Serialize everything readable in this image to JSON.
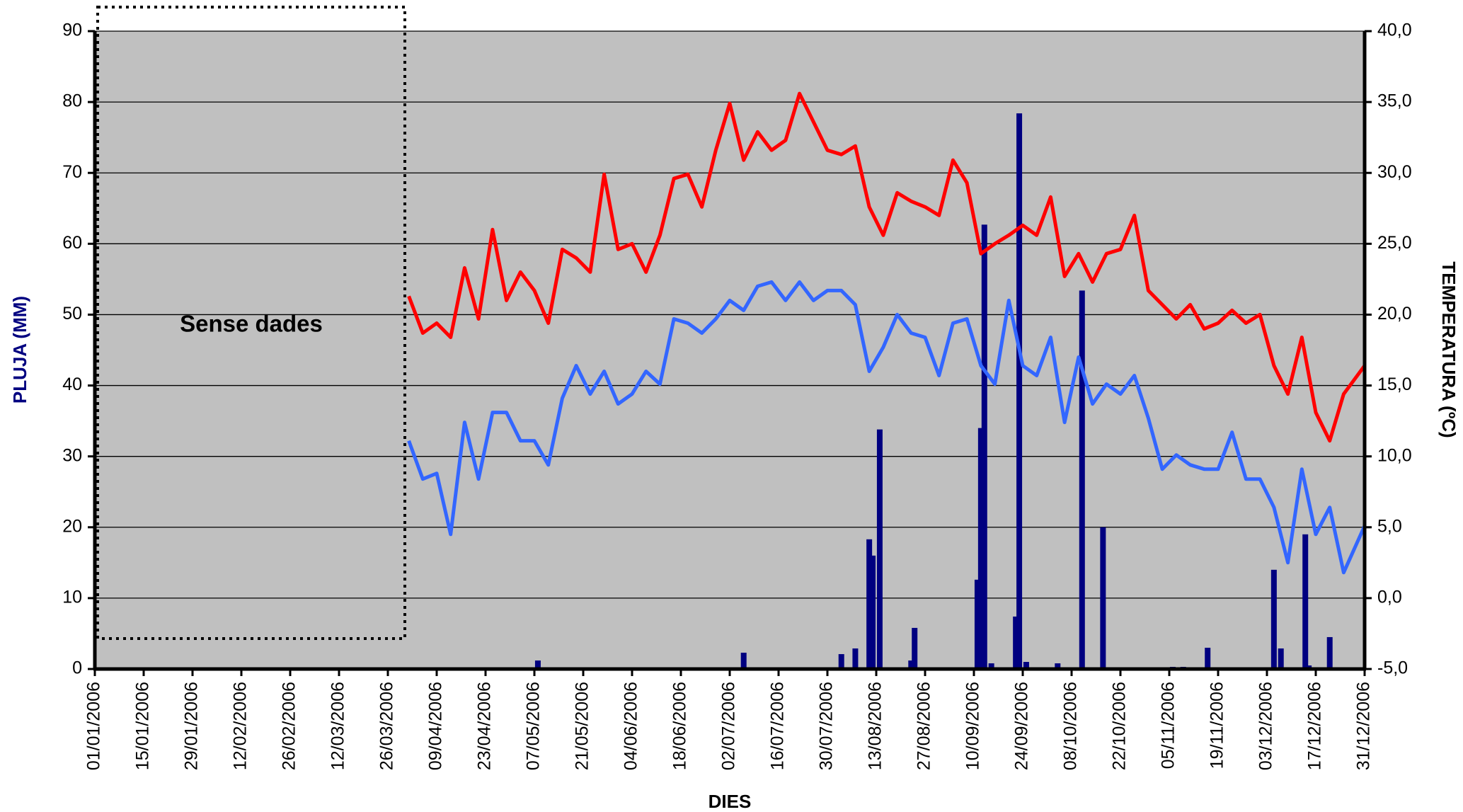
{
  "chart_data": {
    "type": "combo",
    "x_label": "DIES",
    "y_label": "PLUJA (MM)",
    "y2_label": "TEMPERATURA (ºC)",
    "annotations": [
      {
        "text": "Sense dades"
      }
    ],
    "xlim": [
      "01/01/2006",
      "31/12/2006"
    ],
    "xticks": [
      "01/01/2006",
      "15/01/2006",
      "29/01/2006",
      "12/02/2006",
      "26/02/2006",
      "12/03/2006",
      "26/03/2006",
      "09/04/2006",
      "23/04/2006",
      "07/05/2006",
      "21/05/2006",
      "04/06/2006",
      "18/06/2006",
      "02/07/2006",
      "16/07/2006",
      "30/07/2006",
      "13/08/2006",
      "27/08/2006",
      "10/09/2006",
      "24/09/2006",
      "08/10/2006",
      "22/10/2006",
      "05/11/2006",
      "19/11/2006",
      "03/12/2006",
      "17/12/2006",
      "31/12/2006"
    ],
    "ylim": [
      0,
      90
    ],
    "yticks": [
      0,
      10,
      20,
      30,
      40,
      50,
      60,
      70,
      80,
      90
    ],
    "y2lim": [
      -5,
      40
    ],
    "y2ticks": [
      {
        "value": -5,
        "label": "-5,0"
      },
      {
        "value": 0,
        "label": "0,0"
      },
      {
        "value": 5,
        "label": "5,0"
      },
      {
        "value": 10,
        "label": "10,0"
      },
      {
        "value": 15,
        "label": "15,0"
      },
      {
        "value": 20,
        "label": "20,0"
      },
      {
        "value": 25,
        "label": "25,0"
      },
      {
        "value": 30,
        "label": "30,0"
      },
      {
        "value": 35,
        "label": "35,0"
      },
      {
        "value": 40,
        "label": "40,0"
      }
    ],
    "grid": true,
    "x": [
      "01/04/2006",
      "05/04/2006",
      "09/04/2006",
      "13/04/2006",
      "17/04/2006",
      "21/04/2006",
      "25/04/2006",
      "29/04/2006",
      "03/05/2006",
      "07/05/2006",
      "11/05/2006",
      "15/05/2006",
      "19/05/2006",
      "23/05/2006",
      "27/05/2006",
      "31/05/2006",
      "04/06/2006",
      "08/06/2006",
      "12/06/2006",
      "16/06/2006",
      "20/06/2006",
      "24/06/2006",
      "28/06/2006",
      "02/07/2006",
      "06/07/2006",
      "10/07/2006",
      "14/07/2006",
      "18/07/2006",
      "22/07/2006",
      "26/07/2006",
      "30/07/2006",
      "03/08/2006",
      "07/08/2006",
      "11/08/2006",
      "15/08/2006",
      "19/08/2006",
      "23/08/2006",
      "27/08/2006",
      "31/08/2006",
      "04/09/2006",
      "08/09/2006",
      "12/09/2006",
      "16/09/2006",
      "20/09/2006",
      "24/09/2006",
      "28/09/2006",
      "02/10/2006",
      "06/10/2006",
      "10/10/2006",
      "14/10/2006",
      "18/10/2006",
      "22/10/2006",
      "26/10/2006",
      "30/10/2006",
      "03/11/2006",
      "07/11/2006",
      "11/11/2006",
      "15/11/2006",
      "19/11/2006",
      "23/11/2006",
      "27/11/2006",
      "01/12/2006",
      "05/12/2006",
      "09/12/2006",
      "13/12/2006",
      "17/12/2006",
      "21/12/2006",
      "25/12/2006",
      "31/12/2006"
    ],
    "series": [
      {
        "kind": "line",
        "axis": "y2",
        "color": "#ff0000",
        "values": [
          21.3,
          18.7,
          19.4,
          18.4,
          23.3,
          19.7,
          26.0,
          21.0,
          23.0,
          21.7,
          19.4,
          24.6,
          24.0,
          23.0,
          29.9,
          24.6,
          25.0,
          23.0,
          25.6,
          29.6,
          29.9,
          27.6,
          31.6,
          34.9,
          30.9,
          32.9,
          31.6,
          32.3,
          35.6,
          33.6,
          31.6,
          31.3,
          31.9,
          27.6,
          25.6,
          28.6,
          28.0,
          27.6,
          27.0,
          30.9,
          29.3,
          24.3,
          25.0,
          25.6,
          26.3,
          25.6,
          28.3,
          22.7,
          24.3,
          22.3,
          24.3,
          24.6,
          27.0,
          21.7,
          20.7,
          19.7,
          20.7,
          19.0,
          19.4,
          20.3,
          19.4,
          20.0,
          16.4,
          14.4,
          18.4,
          13.1,
          11.1,
          14.4,
          16.4
        ]
      },
      {
        "kind": "line",
        "axis": "y2",
        "color": "#3366ff",
        "values": [
          11.1,
          8.4,
          8.8,
          4.5,
          12.4,
          8.4,
          13.1,
          13.1,
          11.1,
          11.1,
          9.4,
          14.1,
          16.4,
          14.4,
          16.0,
          13.7,
          14.4,
          16.0,
          15.1,
          19.7,
          19.4,
          18.7,
          19.7,
          21.0,
          20.3,
          22.0,
          22.3,
          21.0,
          22.3,
          21.0,
          21.7,
          21.7,
          20.7,
          16.0,
          17.7,
          20.0,
          18.7,
          18.4,
          15.7,
          19.4,
          19.7,
          16.4,
          15.1,
          21.0,
          16.4,
          15.7,
          18.4,
          12.4,
          17.0,
          13.7,
          15.1,
          14.4,
          15.7,
          12.7,
          9.1,
          10.1,
          9.4,
          9.1,
          9.1,
          11.7,
          8.4,
          8.4,
          6.4,
          2.5,
          9.1,
          4.5,
          6.4,
          1.8,
          5.1
        ]
      },
      {
        "kind": "bar",
        "color": "#000080",
        "x": [
          "08/05/2006",
          "06/07/2006",
          "03/08/2006",
          "07/08/2006",
          "11/08/2006",
          "12/08/2006",
          "14/08/2006",
          "23/08/2006",
          "24/08/2006",
          "11/09/2006",
          "12/09/2006",
          "13/09/2006",
          "15/09/2006",
          "22/09/2006",
          "23/09/2006",
          "25/09/2006",
          "04/10/2006",
          "11/10/2006",
          "17/10/2006",
          "06/11/2006",
          "09/11/2006",
          "16/11/2006",
          "05/12/2006",
          "07/12/2006",
          "14/12/2006",
          "15/12/2006",
          "21/12/2006",
          "27/12/2006"
        ],
        "values": [
          1.2,
          2.3,
          2.1,
          2.9,
          18.3,
          16,
          33.8,
          1.2,
          5.8,
          12.6,
          34,
          62.7,
          0.8,
          7.4,
          78.4,
          1.0,
          0.8,
          53.4,
          20,
          0.3,
          0.3,
          3,
          14,
          2.9,
          19,
          0.5,
          4.5,
          0.2
        ]
      }
    ]
  }
}
